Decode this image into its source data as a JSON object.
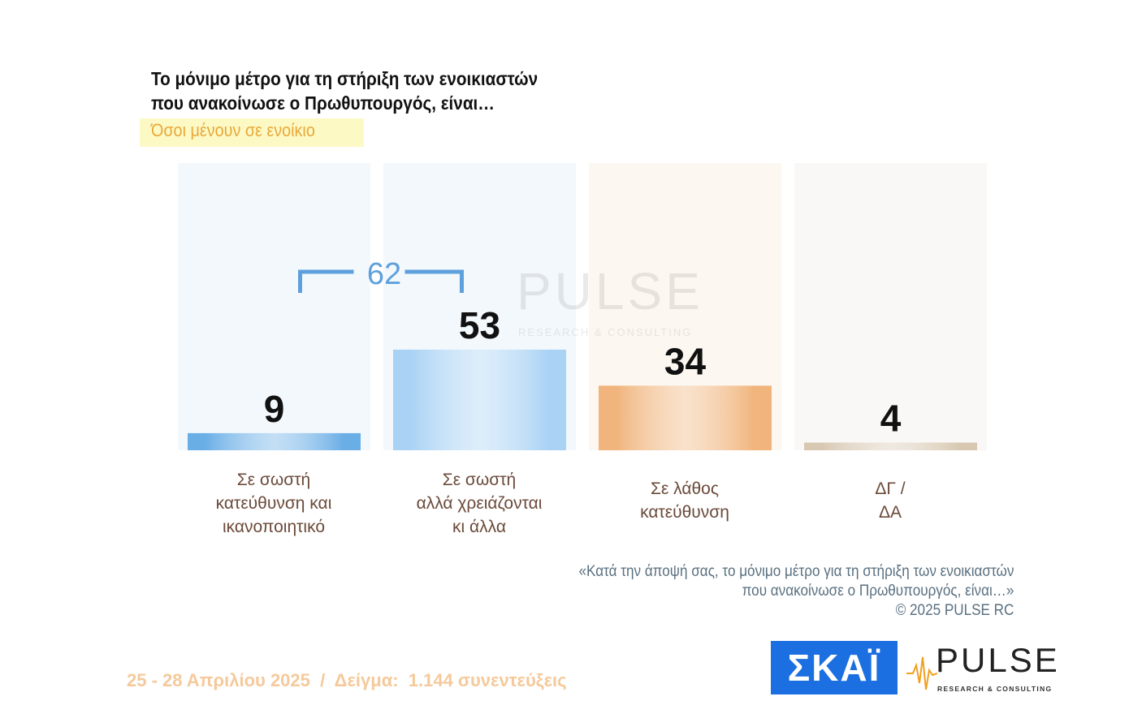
{
  "title_lines": [
    "Το μόνιμο μέτρο για τη στήριξη των ενοικιαστών",
    "που ανακοίνωσε ο Πρωθυπουργός, είναι…"
  ],
  "subtitle": "Όσοι μένουν σε ενοίκιο",
  "chart_data": {
    "type": "bar",
    "categories": [
      [
        "Σε σωστή",
        "κατεύθυνση και",
        "ικανοποιητικό"
      ],
      [
        "Σε σωστή",
        "αλλά χρειάζονται",
        "κι άλλα"
      ],
      [
        "Σε λάθος",
        "κατεύθυνση"
      ],
      [
        "ΔΓ /",
        "ΔΑ"
      ]
    ],
    "values": [
      9,
      53,
      34,
      4
    ],
    "data_labels": [
      "9",
      "53",
      "34",
      "4"
    ],
    "colors": [
      "#6aaee6",
      "#a9d2f4",
      "#f0b47c",
      "#d8c8b2"
    ],
    "ylim": [
      0,
      100
    ],
    "grid": false,
    "bracket": {
      "label": "62",
      "spans": [
        0,
        1
      ],
      "color": "#5ea0dc"
    }
  },
  "watermark": {
    "text": "PULSE",
    "sub": "RESEARCH & CONSULTING"
  },
  "question_lines": [
    "«Κατά την άποψή σας, το μόνιμο μέτρο για τη στήριξη των ενοικιαστών",
    "που ανακοίνωσε ο Πρωθυπουργός, είναι…»",
    "©  2025  PULSE RC"
  ],
  "footer": "25 - 28 Απριλίου 2025  /  Δείγμα:  1.144 συνεντεύξεις",
  "logos": {
    "skai": "ΣΚΑΪ",
    "pulse_name": "PULSE",
    "pulse_sub": "RESEARCH & CONSULTING",
    "skai_color": "#1b6fe0",
    "pulse_accent": "#f0a020"
  }
}
